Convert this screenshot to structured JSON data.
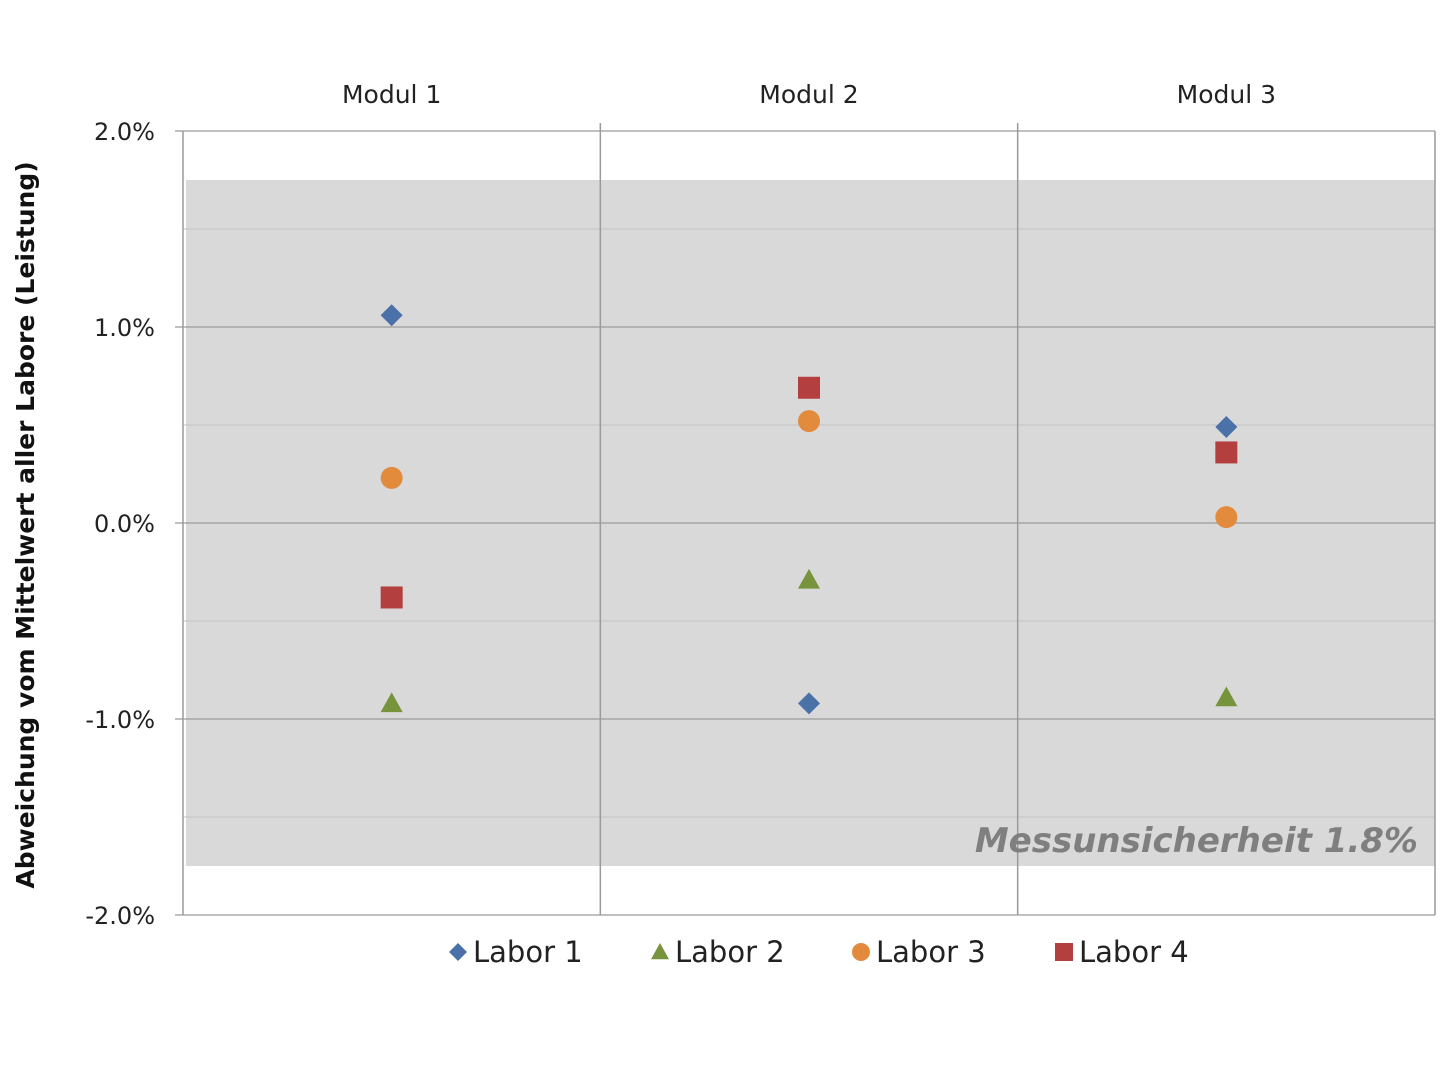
{
  "chart_data": {
    "type": "scatter",
    "categories": [
      "Modul 1",
      "Modul 2",
      "Modul 3"
    ],
    "ylabel": "Abweichung vom Mittelwert aller Labore (Leistung)",
    "ylim": [
      -0.02,
      0.02
    ],
    "yticks": [
      {
        "value": 0.02,
        "label": "2.0%"
      },
      {
        "value": 0.01,
        "label": "1.0%"
      },
      {
        "value": 0.0,
        "label": "0.0%"
      },
      {
        "value": -0.01,
        "label": "-1.0%"
      },
      {
        "value": -0.02,
        "label": "-2.0%"
      }
    ],
    "minor_grid": [
      0.015,
      0.005,
      -0.005,
      -0.015
    ],
    "band": {
      "low": -0.0175,
      "high": 0.0175,
      "label": "Messunsicherheit 1.8%",
      "color": "#d9d9d9"
    },
    "legend_position": "bottom",
    "series": [
      {
        "name": "Labor 1",
        "marker": "diamond",
        "color": "#4a72a8",
        "values": [
          0.0106,
          -0.0092,
          0.0049
        ]
      },
      {
        "name": "Labor 2",
        "marker": "triangle",
        "color": "#77933c",
        "values": [
          -0.0092,
          -0.0029,
          -0.0089
        ]
      },
      {
        "name": "Labor 3",
        "marker": "circle",
        "color": "#e38b3d",
        "values": [
          0.0023,
          0.0052,
          0.0003
        ]
      },
      {
        "name": "Labor 4",
        "marker": "square",
        "color": "#b3403f",
        "values": [
          -0.0038,
          0.0069,
          0.0036
        ]
      }
    ]
  }
}
